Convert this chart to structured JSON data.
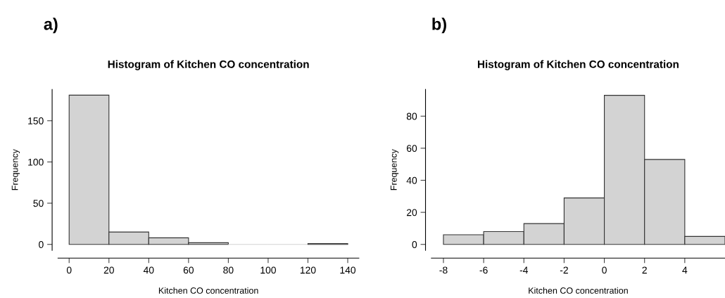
{
  "chart_data": [
    {
      "type": "histogram",
      "title": "Histogram of Kitchen CO concentration",
      "xlabel": "Kitchen CO concentration",
      "ylabel": "Frequency",
      "annotations": [
        "a)"
      ],
      "bins": [
        0,
        20,
        40,
        60,
        80,
        100,
        120,
        140
      ],
      "values": [
        181,
        15,
        8,
        2,
        0,
        0,
        1
      ],
      "color": "#d3d3d3",
      "xlim": [
        -5.6,
        145.6
      ],
      "xticks": [
        0,
        20,
        40,
        60,
        80,
        100,
        120,
        140
      ],
      "ylim": [
        -7.2,
        188
      ],
      "yticks": [
        0,
        50,
        100,
        150
      ],
      "grid": false,
      "legend": false
    },
    {
      "type": "histogram",
      "title": "Histogram of Kitchen CO concentration",
      "xlabel": "Kitchen CO concentration",
      "ylabel": "Frequency",
      "annotations": [
        "b)"
      ],
      "bins": [
        -8,
        -6,
        -4,
        -2,
        0,
        2,
        4,
        6
      ],
      "values": [
        6,
        8,
        13,
        29,
        93,
        53,
        5
      ],
      "color": "#d3d3d3",
      "xlim": [
        -8.6,
        6
      ],
      "xticks": [
        -8,
        -6,
        -4,
        -2,
        0,
        2,
        4
      ],
      "ylim": [
        -3.7,
        96.7
      ],
      "yticks": [
        0,
        20,
        40,
        60,
        80
      ],
      "grid": false,
      "legend": false
    }
  ]
}
